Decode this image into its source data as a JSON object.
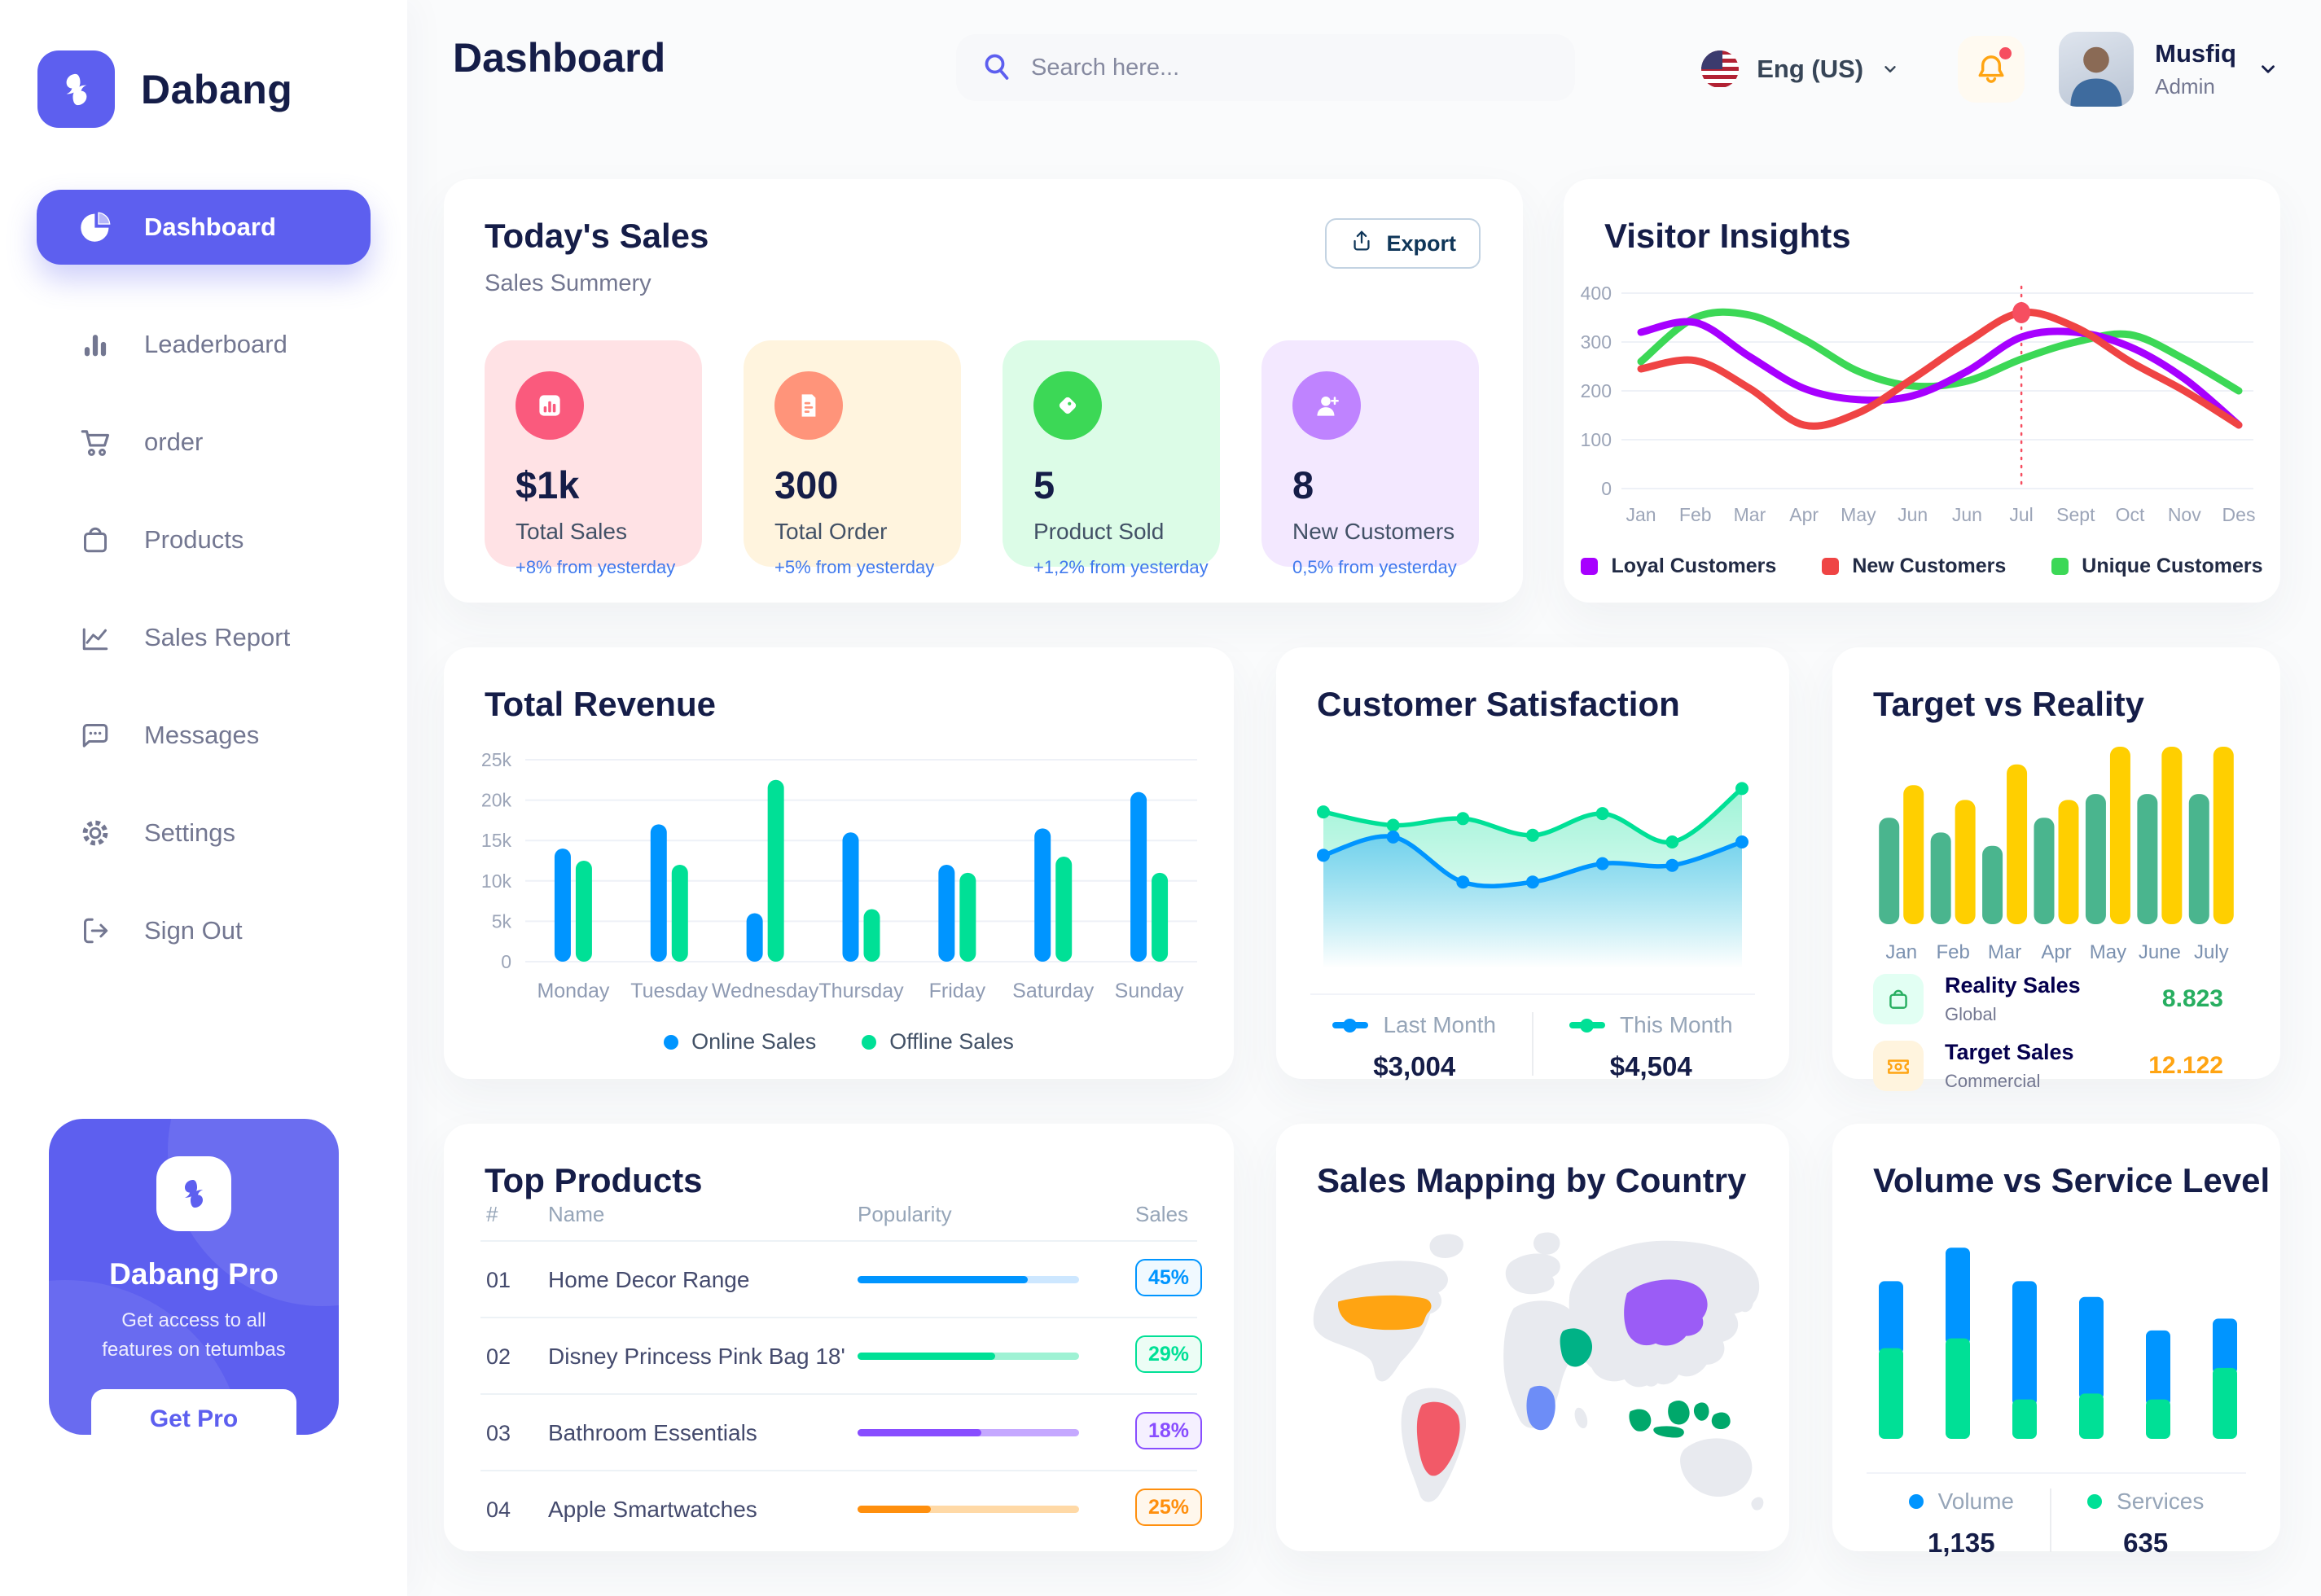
{
  "brand": {
    "name": "Dabang"
  },
  "sidebar": {
    "items": [
      {
        "label": "Dashboard",
        "active": true
      },
      {
        "label": "Leaderboard"
      },
      {
        "label": "order"
      },
      {
        "label": "Products"
      },
      {
        "label": "Sales Report"
      },
      {
        "label": "Messages"
      },
      {
        "label": "Settings"
      },
      {
        "label": "Sign Out"
      }
    ],
    "pro": {
      "title": "Dabang Pro",
      "description": "Get access to all features on tetumbas",
      "button_label": "Get Pro"
    }
  },
  "header": {
    "title": "Dashboard",
    "search_placeholder": "Search here...",
    "language": "Eng (US)",
    "user": {
      "name": "Musfiq",
      "role": "Admin"
    }
  },
  "todays_sales": {
    "title": "Today's Sales",
    "subtitle": "Sales Summery",
    "export_label": "Export",
    "tiles": [
      {
        "value": "$1k",
        "label": "Total Sales",
        "delta": "+8% from yesterday",
        "bg": "#FFE2E5",
        "icon_bg": "#FA5A7D",
        "icon": "bar-chart"
      },
      {
        "value": "300",
        "label": "Total Order",
        "delta": "+5% from yesterday",
        "bg": "#FFF4DE",
        "icon_bg": "#FF947A",
        "icon": "receipt"
      },
      {
        "value": "5",
        "label": "Product Sold",
        "delta": "+1,2% from yesterday",
        "bg": "#DCFCE7",
        "icon_bg": "#3CD856",
        "icon": "tag"
      },
      {
        "value": "8",
        "label": "New Customers",
        "delta": "0,5% from yesterday",
        "bg": "#F3E8FF",
        "icon_bg": "#BF83FF",
        "icon": "user-plus"
      }
    ]
  },
  "chart_data": [
    {
      "id": "visitor-insights",
      "type": "line",
      "title": "Visitor Insights",
      "x": [
        "Jan",
        "Feb",
        "Mar",
        "Apr",
        "May",
        "Jun",
        "Jun",
        "Jul",
        "Sept",
        "Oct",
        "Nov",
        "Des"
      ],
      "ylim": [
        0,
        400
      ],
      "yticks": [
        0,
        100,
        200,
        300,
        400
      ],
      "grid": true,
      "legend_position": "bottom",
      "series": [
        {
          "name": "Loyal Customers",
          "color": "#A700FF",
          "values": [
            320,
            340,
            270,
            205,
            182,
            190,
            240,
            310,
            320,
            290,
            225,
            130
          ]
        },
        {
          "name": "New Customers",
          "color": "#EF4444",
          "values": [
            245,
            262,
            205,
            130,
            155,
            225,
            300,
            360,
            330,
            260,
            200,
            130
          ]
        },
        {
          "name": "Unique Customers",
          "color": "#3CD856",
          "values": [
            260,
            350,
            355,
            305,
            240,
            210,
            220,
            265,
            300,
            315,
            265,
            200
          ]
        }
      ],
      "highlight": {
        "x_label": "Jul",
        "x_index": 7,
        "series": "New Customers",
        "value": 360,
        "line_color": "#F64E60"
      }
    },
    {
      "id": "total-revenue",
      "type": "bar",
      "title": "Total Revenue",
      "categories": [
        "Monday",
        "Tuesday",
        "Wednesday",
        "Thursday",
        "Friday",
        "Saturday",
        "Sunday"
      ],
      "unit": "k",
      "ylim": [
        0,
        25
      ],
      "ytick_labels": [
        "0",
        "5k",
        "10k",
        "15k",
        "20k",
        "25k"
      ],
      "grid": true,
      "legend_position": "bottom",
      "series": [
        {
          "name": "Online Sales",
          "color": "#0095FF",
          "values": [
            14,
            17,
            6,
            16,
            12,
            16.5,
            21
          ]
        },
        {
          "name": "Offline Sales",
          "color": "#00E096",
          "values": [
            12.5,
            12,
            22.5,
            6.5,
            11,
            13,
            11
          ]
        }
      ]
    },
    {
      "id": "customer-satisfaction",
      "type": "area",
      "title": "Customer Satisfaction",
      "ylim": [
        0,
        100
      ],
      "legend_position": "bottom",
      "series": [
        {
          "name": "Last Month",
          "total": "$3,004",
          "color": "#0095FF",
          "values": [
            52,
            63,
            36,
            36,
            47,
            46,
            60
          ]
        },
        {
          "name": "This Month",
          "total": "$4,504",
          "color": "#00E096",
          "values": [
            78,
            70,
            74,
            64,
            77,
            60,
            92
          ]
        }
      ]
    },
    {
      "id": "target-vs-reality",
      "type": "bar",
      "title": "Target vs Reality",
      "categories": [
        "Jan",
        "Feb",
        "Mar",
        "Apr",
        "May",
        "June",
        "July"
      ],
      "ylim": [
        0,
        12
      ],
      "legend_position": "bottom-list",
      "series": [
        {
          "name": "Reality Sales",
          "subtitle": "Global",
          "value": "8.823",
          "color": "#4AB58E",
          "value_color": "#27AE60",
          "icon_bg": "#E2FFF3",
          "values": [
            7.2,
            6.2,
            5.3,
            7.2,
            8.8,
            8.8,
            8.8
          ]
        },
        {
          "name": "Target Sales",
          "subtitle": "Commercial",
          "value": "12.122",
          "color": "#FFCF00",
          "value_color": "#FFA412",
          "icon_bg": "#FFF4DE",
          "values": [
            9.4,
            8.4,
            10.8,
            8.4,
            12,
            12,
            12
          ]
        }
      ]
    },
    {
      "id": "sales-mapping",
      "type": "map",
      "title": "Sales Mapping by Country",
      "land_color": "#E8EAEF",
      "countries": [
        {
          "name": "United States",
          "color": "#FFA412"
        },
        {
          "name": "Brazil",
          "color": "#F25A68"
        },
        {
          "name": "Saudi Arabia",
          "color": "#00B286"
        },
        {
          "name": "DR Congo",
          "color": "#6D8DF7"
        },
        {
          "name": "China",
          "color": "#9B5CF6"
        },
        {
          "name": "Indonesia",
          "color": "#00A86B"
        }
      ]
    },
    {
      "id": "volume-vs-service",
      "type": "stacked-bar",
      "title": "Volume vs Service Level",
      "legend_position": "bottom",
      "series": [
        {
          "name": "Volume",
          "total": "1,135",
          "color": "#0095FF",
          "values": [
            34,
            46,
            60,
            49,
            35,
            25
          ]
        },
        {
          "name": "Services",
          "total": "635",
          "color": "#00E096",
          "values": [
            46,
            51,
            20,
            23,
            20,
            36
          ]
        }
      ]
    }
  ],
  "top_products": {
    "title": "Top Products",
    "columns": [
      "#",
      "Name",
      "Popularity",
      "Sales"
    ],
    "rows": [
      {
        "index": "01",
        "name": "Home Decor Range",
        "popularity": 77,
        "sales": "45%",
        "color": "#0095FF",
        "track": "#CDE7FF",
        "badge_bg": "#F0F9FF"
      },
      {
        "index": "02",
        "name": "Disney Princess Pink Bag 18'",
        "popularity": 62,
        "sales": "29%",
        "color": "#00E096",
        "track": "#9FF2D4",
        "badge_bg": "#ECFDF5"
      },
      {
        "index": "03",
        "name": "Bathroom Essentials",
        "popularity": 56,
        "sales": "18%",
        "color": "#884DFF",
        "track": "#C5A8FF",
        "badge_bg": "#F5F0FF"
      },
      {
        "index": "04",
        "name": "Apple Smartwatches",
        "popularity": 33,
        "sales": "25%",
        "color": "#FF8F0D",
        "track": "#FFD9A6",
        "badge_bg": "#FFF7EC"
      }
    ]
  }
}
